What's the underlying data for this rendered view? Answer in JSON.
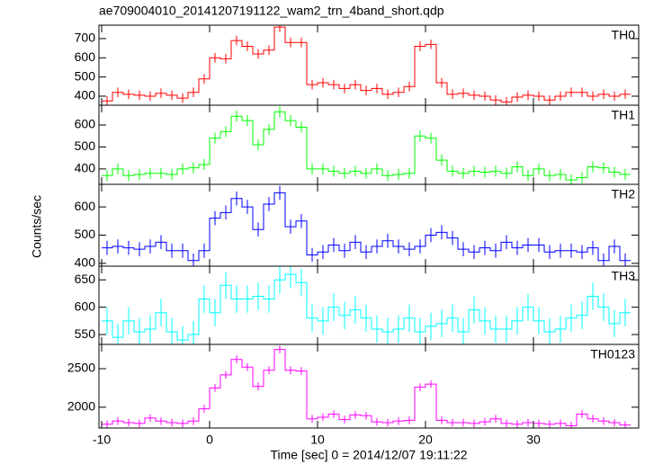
{
  "chart_data": [
    {
      "type": "step",
      "title": "ae709004010_20141207191122_wam2_trn_4band_short.qdp",
      "label": "TH0",
      "color": "#ff0000",
      "error": 25,
      "ylim": [
        353,
        770
      ],
      "yticks": [
        400,
        500,
        600,
        700
      ],
      "values": [
        375,
        420,
        410,
        405,
        400,
        415,
        405,
        390,
        420,
        490,
        600,
        595,
        690,
        660,
        620,
        640,
        760,
        680,
        680,
        460,
        470,
        460,
        440,
        460,
        430,
        440,
        410,
        420,
        450,
        660,
        670,
        470,
        410,
        415,
        405,
        400,
        380,
        370,
        395,
        405,
        400,
        380,
        400,
        420,
        420,
        400,
        410,
        400,
        410
      ]
    },
    {
      "type": "step",
      "label": "TH1",
      "color": "#00ff00",
      "error": 25,
      "ylim": [
        330,
        690
      ],
      "yticks": [
        400,
        500,
        600
      ],
      "values": [
        370,
        400,
        370,
        375,
        380,
        380,
        375,
        400,
        405,
        420,
        540,
        570,
        640,
        620,
        510,
        580,
        660,
        620,
        590,
        400,
        400,
        390,
        380,
        390,
        380,
        400,
        370,
        375,
        380,
        550,
        540,
        440,
        390,
        380,
        390,
        385,
        390,
        380,
        410,
        370,
        400,
        370,
        375,
        350,
        360,
        410,
        405,
        385,
        375
      ]
    },
    {
      "type": "step",
      "label": "TH2",
      "color": "#0000ff",
      "error": 25,
      "ylabel": "Counts/sec",
      "ylim": [
        390,
        680
      ],
      "yticks": [
        400,
        500,
        600
      ],
      "values": [
        455,
        460,
        455,
        450,
        460,
        475,
        445,
        445,
        410,
        445,
        560,
        580,
        630,
        600,
        520,
        610,
        650,
        530,
        550,
        430,
        440,
        465,
        445,
        475,
        440,
        460,
        480,
        460,
        450,
        460,
        500,
        510,
        490,
        450,
        440,
        455,
        445,
        475,
        455,
        465,
        465,
        440,
        445,
        445,
        440,
        455,
        410,
        460,
        410
      ]
    },
    {
      "type": "step",
      "label": "TH3",
      "color": "#00ffff",
      "error": 25,
      "ylim": [
        532,
        675
      ],
      "yticks": [
        550,
        600,
        650
      ],
      "values": [
        575,
        545,
        575,
        555,
        560,
        590,
        555,
        540,
        550,
        615,
        590,
        640,
        615,
        615,
        620,
        615,
        650,
        660,
        645,
        580,
        575,
        600,
        585,
        595,
        580,
        560,
        555,
        560,
        580,
        555,
        565,
        570,
        580,
        555,
        595,
        575,
        560,
        560,
        575,
        600,
        575,
        555,
        560,
        580,
        585,
        620,
        600,
        570,
        590
      ]
    },
    {
      "type": "step",
      "label": "TH0123",
      "color": "#ff00ff",
      "error": 50,
      "xlabel": "Time [sec] 0 = 2014/12/07 19:11:22",
      "ylim": [
        1730,
        2815
      ],
      "yticks": [
        2000,
        2500
      ],
      "xlim": [
        -10.25,
        39.75
      ],
      "xticks": [
        -10,
        0,
        10,
        20,
        30
      ],
      "x": [
        -9.5,
        -8.5,
        -7.5,
        -6.5,
        -5.5,
        -4.5,
        -3.5,
        -2.5,
        -1.5,
        -0.5,
        0.5,
        1.5,
        2.5,
        3.5,
        4.5,
        5.5,
        6.5,
        7.5,
        8.5,
        9.5,
        10.5,
        11.5,
        12.5,
        13.5,
        14.5,
        15.5,
        16.5,
        17.5,
        18.5,
        19.5,
        20.5,
        21.5,
        22.5,
        23.5,
        24.5,
        25.5,
        26.5,
        27.5,
        28.5,
        29.5,
        30.5,
        31.5,
        32.5,
        33.5,
        34.5,
        35.5,
        36.5,
        37.5,
        38.5
      ],
      "values": [
        1780,
        1820,
        1800,
        1790,
        1860,
        1820,
        1800,
        1790,
        1820,
        1980,
        2250,
        2420,
        2620,
        2520,
        2270,
        2480,
        2750,
        2480,
        2470,
        1850,
        1870,
        1910,
        1840,
        1900,
        1890,
        1810,
        1800,
        1820,
        1830,
        2260,
        2300,
        1830,
        1800,
        1800,
        1790,
        1810,
        1850,
        1790,
        1780,
        1800,
        1790,
        1780,
        1790,
        1760,
        1910,
        1850,
        1820,
        1800,
        1770
      ]
    }
  ]
}
